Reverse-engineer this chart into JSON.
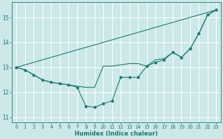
{
  "xlabel": "Humidex (Indice chaleur)",
  "background_color": "#cce8e8",
  "grid_color": "#ffffff",
  "line_color": "#1a7a6e",
  "xlim": [
    -0.5,
    23.5
  ],
  "ylim": [
    10.8,
    15.6
  ],
  "yticks": [
    11,
    12,
    13,
    14,
    15
  ],
  "xticks": [
    0,
    1,
    2,
    3,
    4,
    5,
    6,
    7,
    8,
    9,
    10,
    11,
    12,
    13,
    14,
    15,
    16,
    17,
    18,
    19,
    20,
    21,
    22,
    23
  ],
  "series_dip_x": [
    0,
    1,
    2,
    3,
    4,
    5,
    6,
    7,
    8,
    9,
    10,
    11,
    12,
    13,
    14,
    15,
    16,
    17,
    18,
    19,
    20,
    21,
    22,
    23
  ],
  "series_dip_y": [
    13.0,
    12.9,
    12.7,
    12.5,
    12.4,
    12.35,
    12.3,
    12.2,
    11.45,
    11.4,
    11.55,
    11.65,
    12.6,
    12.6,
    12.6,
    13.05,
    13.2,
    13.3,
    13.6,
    13.4,
    13.75,
    14.35,
    15.1,
    15.3
  ],
  "series_flat_x": [
    0,
    1,
    2,
    3,
    4,
    5,
    6,
    7,
    8,
    9,
    10,
    11,
    12,
    13,
    14,
    15,
    16,
    17,
    18,
    19,
    20,
    21,
    22,
    23
  ],
  "series_flat_y": [
    13.0,
    12.9,
    12.7,
    12.5,
    12.4,
    12.35,
    12.3,
    12.25,
    12.2,
    12.2,
    13.05,
    13.05,
    13.1,
    13.15,
    13.15,
    13.05,
    13.3,
    13.35,
    13.6,
    13.4,
    13.75,
    14.35,
    15.1,
    15.3
  ],
  "series_line_x": [
    0,
    23
  ],
  "series_line_y": [
    13.0,
    15.3
  ]
}
